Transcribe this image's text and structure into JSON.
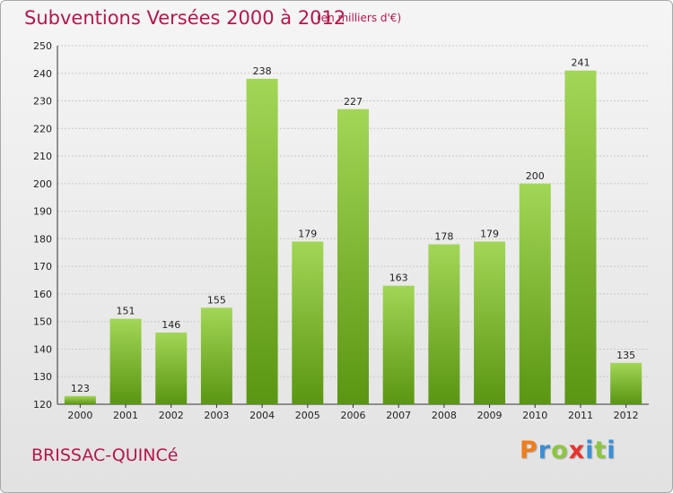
{
  "header": {
    "title": "Subventions Versées 2000 à 2012",
    "subtitle": "(en milliers d'€)"
  },
  "footer": {
    "city": "BRISSAC-QUINCé",
    "logo": [
      "P",
      "r",
      "o",
      "x",
      "i",
      "t",
      "i"
    ]
  },
  "colors": {
    "title": "#b5174d",
    "bar_light": "#9fd14f",
    "bar_dark": "#5e9a14",
    "logo": [
      "#f07d1a",
      "#3a8fd6",
      "#8cc63f",
      "#e8332e",
      "#3a8fd6",
      "#8cc63f",
      "#3a8fd6"
    ]
  },
  "chart_data": {
    "type": "bar",
    "title": "Subventions Versées 2000 à 2012",
    "subtitle": "(en milliers d'€)",
    "categories": [
      "2000",
      "2001",
      "2002",
      "2003",
      "2004",
      "2005",
      "2006",
      "2007",
      "2008",
      "2009",
      "2010",
      "2011",
      "2012"
    ],
    "values": [
      123,
      151,
      146,
      155,
      238,
      179,
      227,
      163,
      178,
      179,
      200,
      241,
      135
    ],
    "ylim": [
      120,
      250
    ],
    "yticks": [
      120,
      130,
      140,
      150,
      160,
      170,
      180,
      190,
      200,
      210,
      220,
      230,
      240,
      250
    ],
    "grid": true,
    "legend": "none"
  }
}
